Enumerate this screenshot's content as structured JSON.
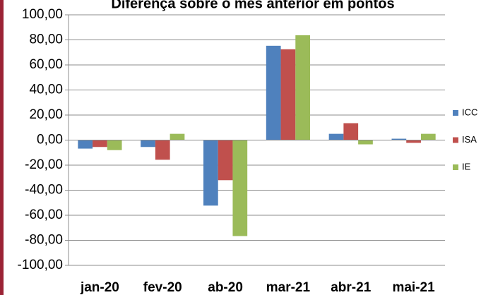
{
  "chart_data": {
    "type": "bar",
    "title": "Diferença sobre o mês anterior em pontos",
    "categories": [
      "jan-20",
      "fev-20",
      "ab-20",
      "mar-21",
      "abr-21",
      "mai-21"
    ],
    "series": [
      {
        "name": "ICC",
        "color": "#4f81bd",
        "values": [
          -6.8,
          -5.5,
          -52.3,
          75.3,
          5,
          1.1
        ]
      },
      {
        "name": "ISA",
        "color": "#c0504d",
        "values": [
          -5.5,
          -15.7,
          -32,
          72.5,
          13.5,
          -2.2
        ]
      },
      {
        "name": "IE",
        "color": "#9bbb59",
        "values": [
          -8,
          5,
          -76.6,
          83.7,
          -3.4,
          5
        ]
      }
    ],
    "ylim": [
      -100,
      100
    ],
    "yticks": [
      {
        "value": -100,
        "label": "-100,00"
      },
      {
        "value": -80,
        "label": "-80,00"
      },
      {
        "value": -60,
        "label": "-60,00"
      },
      {
        "value": -40,
        "label": "-40,00"
      },
      {
        "value": -20,
        "label": "-20,00"
      },
      {
        "value": 0,
        "label": "0,00"
      },
      {
        "value": 20,
        "label": "20,00"
      },
      {
        "value": 40,
        "label": "40,00"
      },
      {
        "value": 60,
        "label": "60,00"
      },
      {
        "value": 80,
        "label": "80,00"
      },
      {
        "value": 100,
        "label": "100,00"
      }
    ],
    "grid": true,
    "legend": "right"
  }
}
